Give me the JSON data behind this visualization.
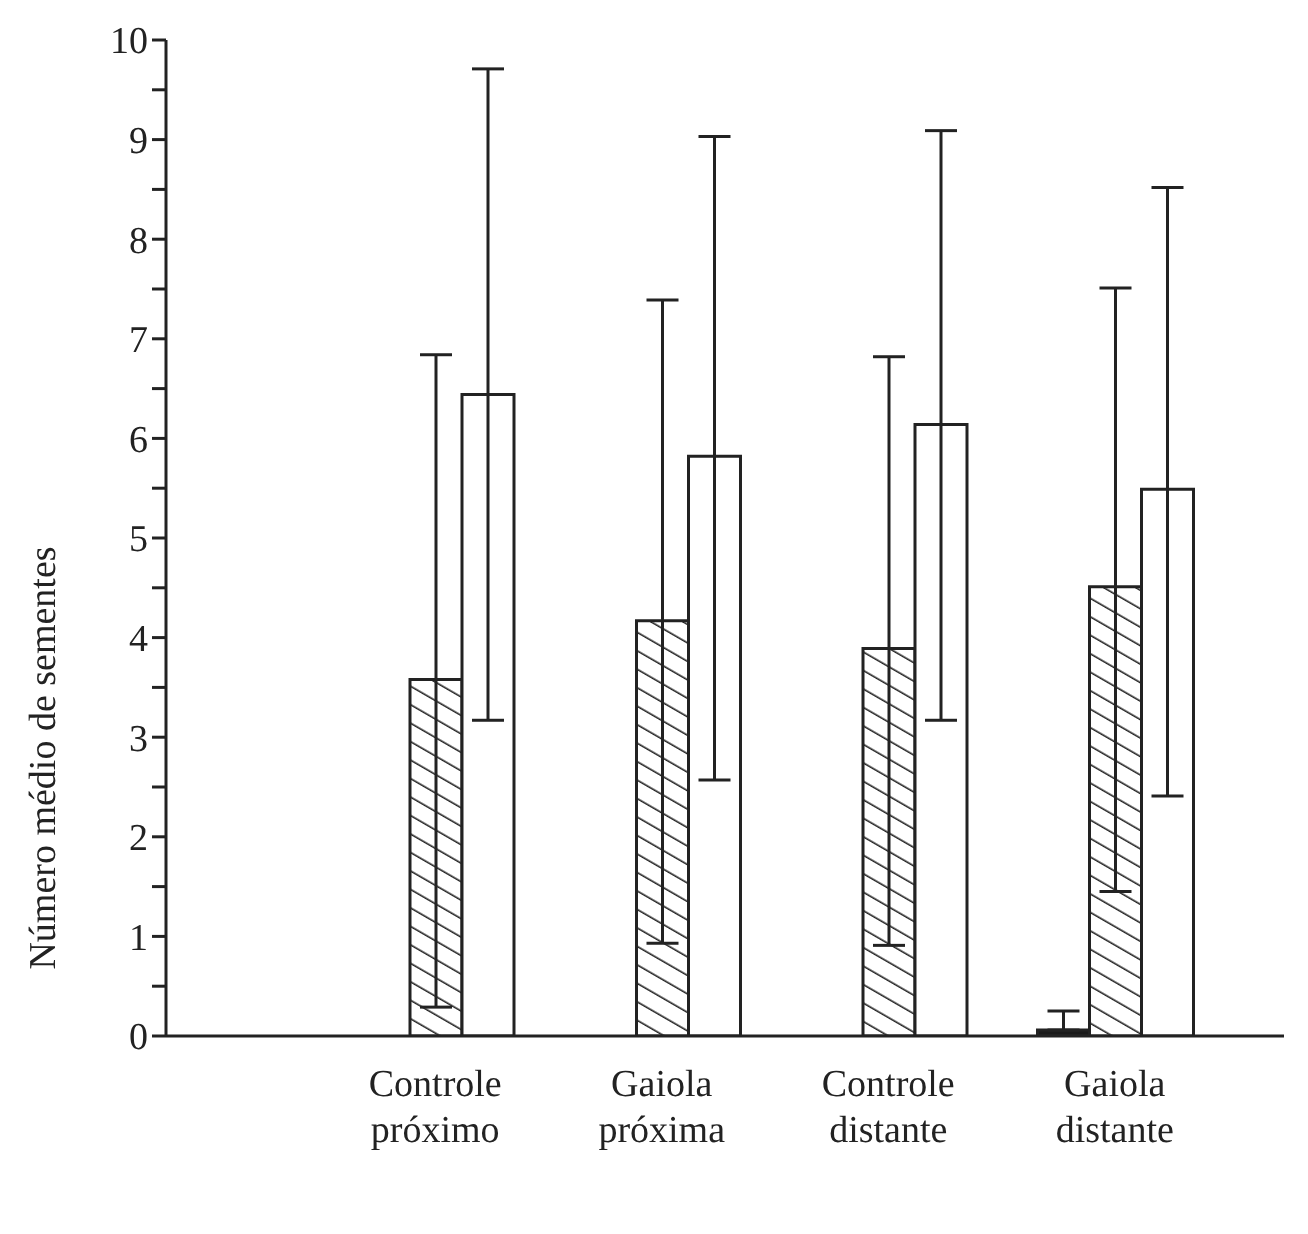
{
  "chart_data": {
    "type": "bar",
    "ylabel": "Número médio de sementes",
    "categories": [
      "Controle\npróximo",
      "Gaiola\npróxima",
      "Controle\ndistante",
      "Gaiola\ndistante"
    ],
    "series": [
      {
        "color": "#1a1a1a",
        "values": [
          null,
          null,
          null,
          0.06
        ],
        "errors": [
          null,
          null,
          null,
          [
            0.06,
            0.25
          ]
        ]
      },
      {
        "color": "#222222",
        "values": [
          3.58,
          4.17,
          3.89,
          4.51
        ],
        "errors": [
          [
            0.29,
            6.84
          ],
          [
            0.93,
            7.39
          ],
          [
            0.91,
            6.82
          ],
          [
            1.45,
            7.51
          ]
        ]
      },
      {
        "color": "#ffffff",
        "values": [
          6.44,
          5.82,
          6.14,
          5.49
        ],
        "errors": [
          [
            3.17,
            9.71
          ],
          [
            2.57,
            9.03
          ],
          [
            3.17,
            9.09
          ],
          [
            2.41,
            8.52
          ]
        ]
      }
    ],
    "ylim": [
      0,
      10
    ],
    "yticks": [
      0,
      {
        "value": 0.5,
        "label": null
      },
      1,
      {
        "value": 1.5,
        "label": null
      },
      2,
      {
        "value": 2.5,
        "label": null
      },
      3,
      {
        "value": 3.5,
        "label": null
      },
      4,
      {
        "value": 4.5,
        "label": null
      },
      5,
      {
        "value": 5.5,
        "label": null
      },
      6,
      {
        "value": 6.5,
        "label": null
      },
      7,
      {
        "value": 7.5,
        "label": null
      },
      8,
      {
        "value": 8.5,
        "label": null
      },
      9,
      {
        "value": 9.5,
        "label": null
      },
      10
    ],
    "grid": false,
    "legend": false
  }
}
